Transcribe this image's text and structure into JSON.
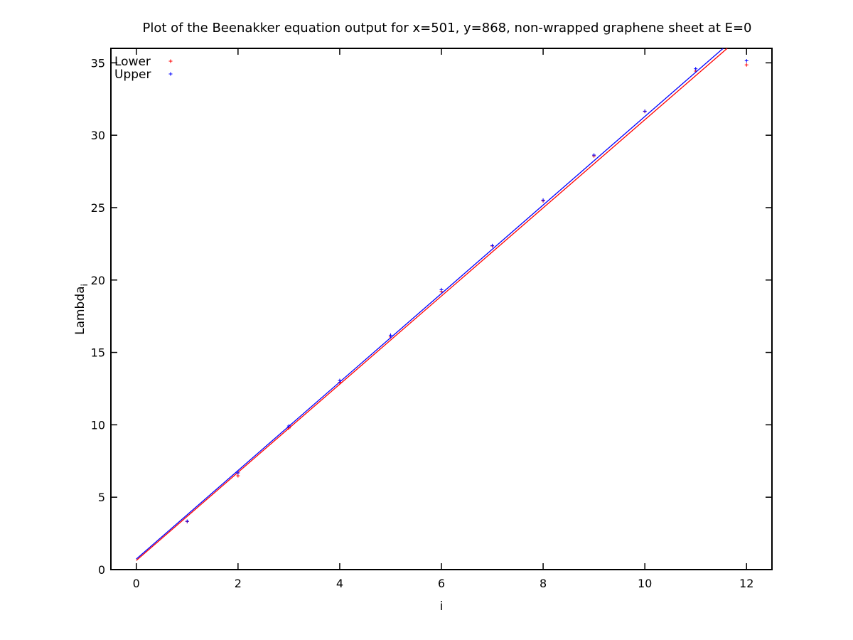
{
  "chart_data": {
    "type": "scatter",
    "title": "Plot of the Beenakker equation output for x=501, y=868, non-wrapped graphene sheet at E=0",
    "xlabel": "i",
    "ylabel_main": "Lambda",
    "ylabel_sub": "i",
    "xlim": [
      -0.5,
      12.5
    ],
    "ylim": [
      0,
      36
    ],
    "x_ticks": [
      0,
      2,
      4,
      6,
      8,
      10,
      12
    ],
    "y_ticks": [
      0,
      5,
      10,
      15,
      20,
      25,
      30,
      35
    ],
    "grid": false,
    "legend_position": "top-left",
    "series": [
      {
        "name": "Lower",
        "color": "#ff0000",
        "x": [
          1,
          2,
          3,
          4,
          5,
          6,
          7,
          8,
          9,
          10,
          11,
          12
        ],
        "y": [
          3.32,
          6.48,
          9.78,
          12.93,
          16.07,
          19.21,
          22.35,
          25.46,
          28.57,
          31.64,
          34.43,
          34.86
        ],
        "fit": {
          "x": [
            0,
            11.62
          ],
          "y": [
            0.63,
            36
          ]
        }
      },
      {
        "name": "Upper",
        "color": "#0000ff",
        "x": [
          1,
          2,
          3,
          4,
          5,
          6,
          7,
          8,
          9,
          10,
          11,
          12
        ],
        "y": [
          3.34,
          6.68,
          9.92,
          13.06,
          16.19,
          19.33,
          22.38,
          25.52,
          28.63,
          31.66,
          34.59,
          35.14
        ],
        "fit": {
          "x": [
            0,
            11.54
          ],
          "y": [
            0.73,
            36
          ]
        }
      }
    ]
  }
}
